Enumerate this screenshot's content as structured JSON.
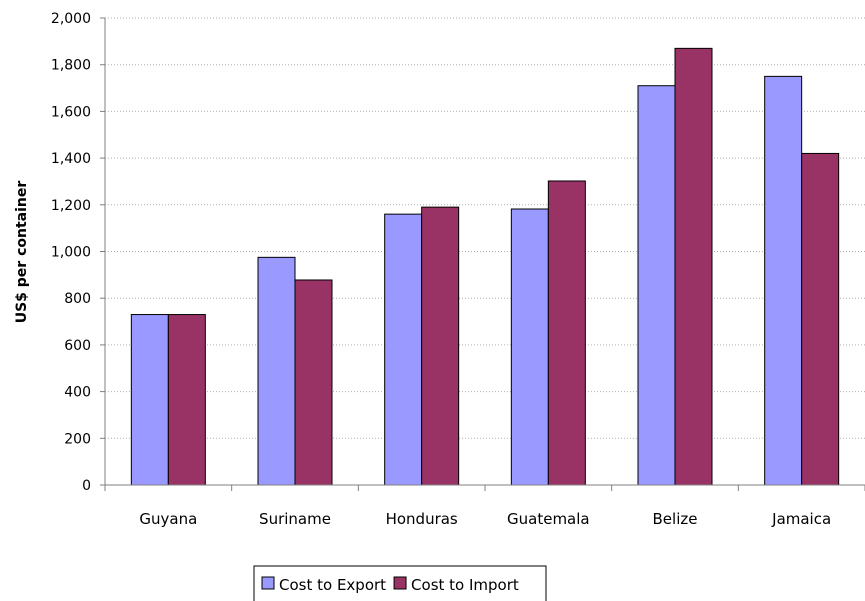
{
  "chart_data": {
    "type": "bar",
    "ylabel": "US$ per container",
    "ylim": [
      0,
      2000
    ],
    "yticks": [
      "0",
      "200",
      "400",
      "600",
      "800",
      "1,000",
      "1,200",
      "1,400",
      "1,600",
      "1,800",
      "2,000"
    ],
    "grid": "horizontal-dotted",
    "legend_position": "bottom",
    "categories": [
      "Guyana",
      "Suriname",
      "Honduras",
      "Guatemala",
      "Belize",
      "Jamaica"
    ],
    "series": [
      {
        "name": "Cost to Export",
        "values": [
          730,
          975,
          1160,
          1182,
          1710,
          1750
        ],
        "color": "#9999ff"
      },
      {
        "name": "Cost to Import",
        "values": [
          730,
          878,
          1190,
          1302,
          1870,
          1420
        ],
        "color": "#993366"
      }
    ]
  }
}
